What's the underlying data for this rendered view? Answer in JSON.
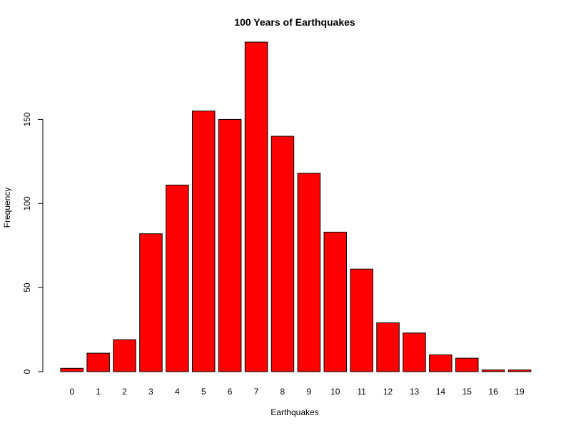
{
  "chart_data": {
    "type": "bar",
    "title": "100 Years of Earthquakes",
    "xlabel": "Earthquakes",
    "ylabel": "Frequency",
    "categories": [
      "0",
      "1",
      "2",
      "3",
      "4",
      "5",
      "6",
      "7",
      "8",
      "9",
      "10",
      "11",
      "12",
      "13",
      "14",
      "15",
      "16",
      "19"
    ],
    "values": [
      2,
      11,
      19,
      82,
      111,
      155,
      150,
      196,
      140,
      118,
      83,
      61,
      29,
      23,
      10,
      8,
      1,
      1
    ],
    "ylim": [
      0,
      196
    ],
    "yticks": [
      0,
      50,
      100,
      150
    ],
    "bar_color": "#ff0000",
    "bar_border_color": "#000000",
    "grid": false,
    "legend": "none"
  }
}
